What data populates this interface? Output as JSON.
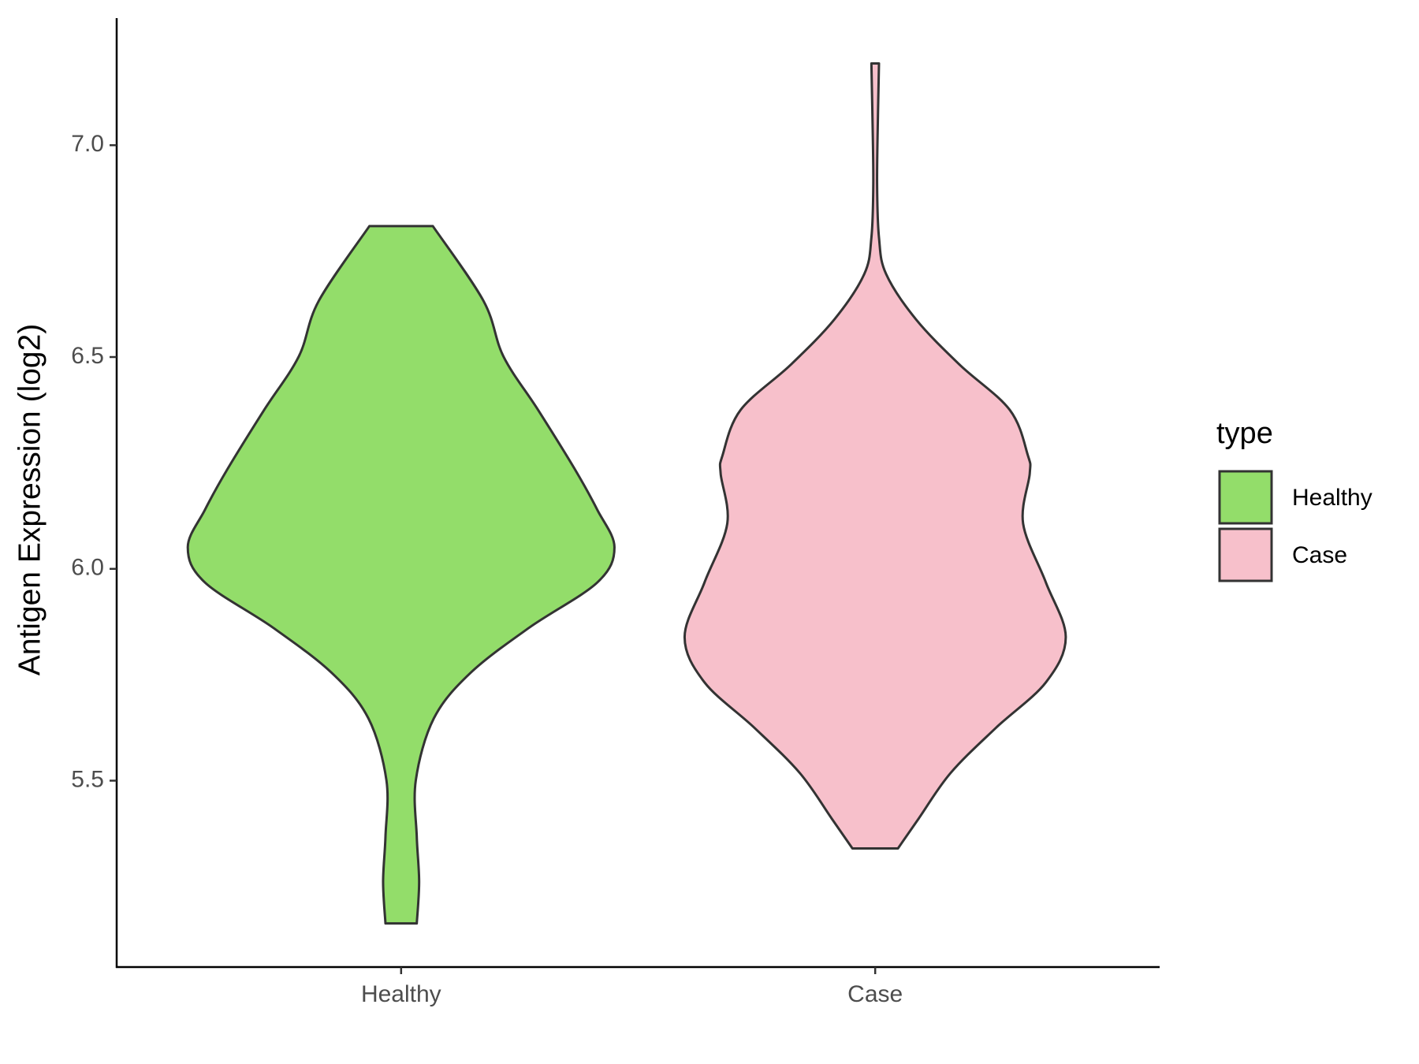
{
  "chart_data": {
    "type": "violin",
    "y_label": "Antigen Expression (log2)",
    "legend_title": "type",
    "categories": [
      "Healthy",
      "Case"
    ],
    "ylim": [
      5.06,
      7.3
    ],
    "yticks": [
      {
        "value": 5.5,
        "label": "5.5"
      },
      {
        "value": 6.0,
        "label": "6.0"
      },
      {
        "value": 6.5,
        "label": "6.5"
      },
      {
        "value": 7.0,
        "label": "7.0"
      }
    ],
    "series": [
      {
        "name": "Healthy",
        "color": "#93dd6a",
        "y": [
          6.809,
          6.632,
          6.501,
          6.375,
          6.236,
          6.139,
          6.051,
          5.968,
          5.861,
          5.754,
          5.647,
          5.501,
          5.368,
          5.261,
          5.163
        ],
        "width": [
          0.067,
          0.174,
          0.216,
          0.289,
          0.366,
          0.414,
          0.45,
          0.414,
          0.27,
          0.146,
          0.069,
          0.031,
          0.033,
          0.038,
          0.033
        ]
      },
      {
        "name": "Case",
        "color": "#f7c0cb",
        "y": [
          7.193,
          7.081,
          6.91,
          6.782,
          6.696,
          6.589,
          6.482,
          6.375,
          6.268,
          6.225,
          6.107,
          5.968,
          5.839,
          5.732,
          5.625,
          5.518,
          5.411,
          5.34
        ],
        "width": [
          0.008,
          0.006,
          0.004,
          0.008,
          0.023,
          0.086,
          0.178,
          0.284,
          0.322,
          0.326,
          0.312,
          0.36,
          0.402,
          0.36,
          0.255,
          0.159,
          0.092,
          0.048
        ]
      }
    ]
  }
}
